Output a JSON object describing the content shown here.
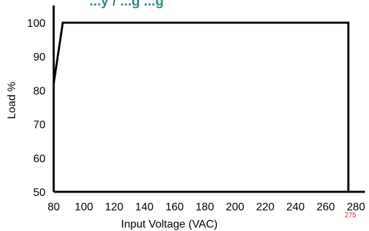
{
  "chart_data": {
    "type": "line",
    "title": "...y / ...g ...g",
    "title_color": "#2e8b87",
    "xlabel": "Input Voltage (VAC)",
    "ylabel": "Load %",
    "xlim": [
      80,
      280
    ],
    "ylim": [
      50,
      100
    ],
    "x_ticks": [
      "80",
      "100",
      "120",
      "140",
      "160",
      "180",
      "200",
      "220",
      "240",
      "260",
      "280"
    ],
    "y_ticks": [
      "50",
      "60",
      "70",
      "80",
      "90",
      "100"
    ],
    "grid": false,
    "series": [
      {
        "color": "#000000",
        "points": [
          {
            "x": 80,
            "y": 82
          },
          {
            "x": 86,
            "y": 100
          },
          {
            "x": 275,
            "y": 100
          },
          {
            "x": 275,
            "y": 50
          }
        ]
      }
    ],
    "annotations": [
      {
        "text": "275",
        "x": 275,
        "color": "#e02020"
      }
    ]
  }
}
